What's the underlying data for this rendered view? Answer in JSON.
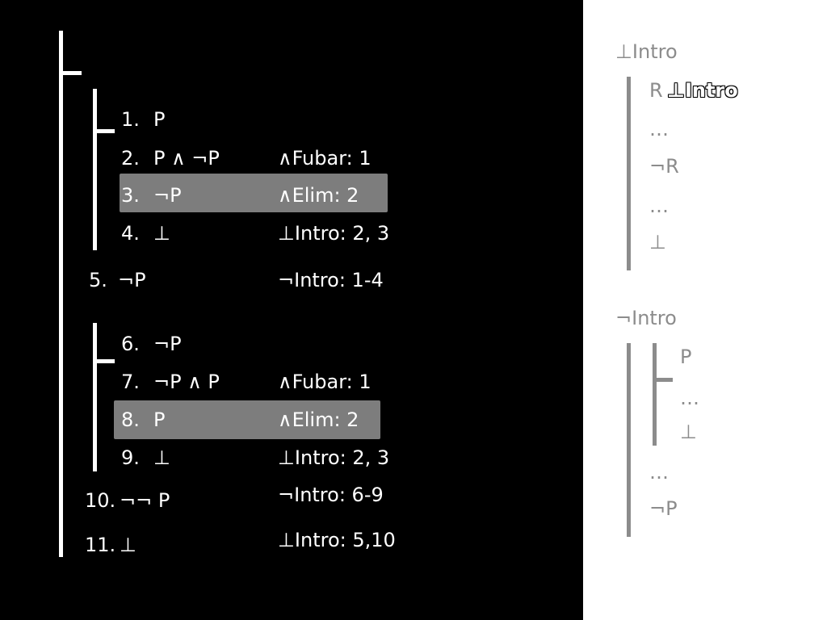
{
  "proof": {
    "lines": [
      {
        "num": "1.",
        "formula": "P",
        "just": ""
      },
      {
        "num": "2.",
        "formula": "P ∧ ¬P",
        "just": "∧Fubar: 1"
      },
      {
        "num": "3.",
        "formula": "¬P",
        "just": "∧Elim: 2"
      },
      {
        "num": "4.",
        "formula": "⊥",
        "just": "⊥Intro: 2, 3"
      },
      {
        "num": "5.",
        "formula": "¬P",
        "just": "¬Intro: 1-4"
      },
      {
        "num": "6.",
        "formula": "¬P",
        "just": ""
      },
      {
        "num": "7.",
        "formula": "¬P ∧ P",
        "just": "∧Fubar: 1"
      },
      {
        "num": "8.",
        "formula": "P",
        "just": "∧Elim: 2"
      },
      {
        "num": "9.",
        "formula": "⊥",
        "just": "⊥Intro: 2, 3"
      },
      {
        "num": "10.",
        "formula": "¬¬ P",
        "just": "¬Intro: 6-9"
      },
      {
        "num": "11.",
        "formula": "⊥",
        "just": "⊥Intro: 5,10"
      }
    ]
  },
  "rules": {
    "bot_intro": {
      "title": "⊥Intro",
      "line1_formula": "R",
      "line1_label": "⊥Intro",
      "line2": "…",
      "line3": "¬R",
      "line4": "…",
      "line5": "⊥"
    },
    "neg_intro": {
      "title": "¬Intro",
      "sub_line1": "P",
      "sub_line2": "…",
      "sub_line3": "⊥",
      "line4": "…",
      "line5": "¬P"
    }
  },
  "colors": {
    "background": "#000000",
    "text": "#ffffff",
    "highlight": "#7d7d7d",
    "rule_text": "#8c8c8c"
  }
}
